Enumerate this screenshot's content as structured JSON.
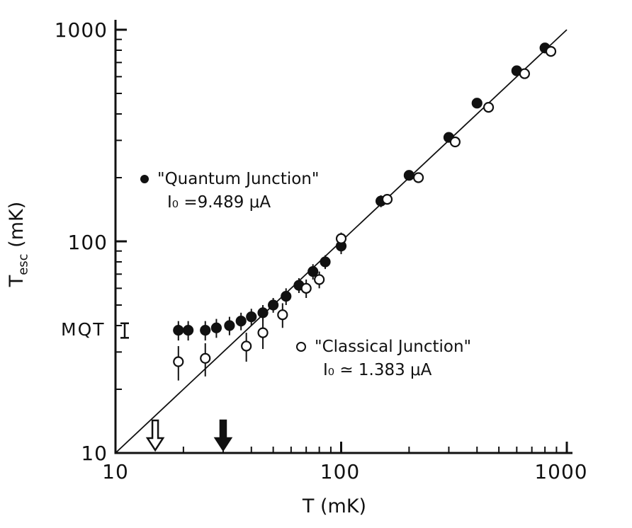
{
  "chart_data": {
    "type": "scatter",
    "title": "",
    "xlabel": "T (mK)",
    "ylabel": "T_esc (mK)",
    "ylabel_parts": {
      "base": "T",
      "sub": "esc",
      "unit": " (mK)"
    },
    "xscale": "log",
    "yscale": "log",
    "xlim": [
      10,
      1000
    ],
    "ylim": [
      10,
      1000
    ],
    "x_ticks": [
      "10",
      "100",
      "1000"
    ],
    "y_ticks": [
      "1000",
      "100",
      "10"
    ],
    "grid": false,
    "reference_line": {
      "from": [
        10,
        10
      ],
      "to": [
        1000,
        1000
      ],
      "meaning": "T_esc = T"
    },
    "series": [
      {
        "name": "Quantum Junction",
        "marker": "filled",
        "legend_line1": "\"Quantum Junction\"",
        "legend_line2": "I₀ =9.489 μA",
        "points": [
          {
            "t": 19,
            "tesc": 38,
            "err": 4
          },
          {
            "t": 21,
            "tesc": 38,
            "err": 4
          },
          {
            "t": 25,
            "tesc": 38,
            "err": 4
          },
          {
            "t": 28,
            "tesc": 39,
            "err": 4
          },
          {
            "t": 32,
            "tesc": 40,
            "err": 4
          },
          {
            "t": 36,
            "tesc": 42,
            "err": 4
          },
          {
            "t": 40,
            "tesc": 44,
            "err": 4
          },
          {
            "t": 45,
            "tesc": 46,
            "err": 4
          },
          {
            "t": 50,
            "tesc": 50,
            "err": 4
          },
          {
            "t": 57,
            "tesc": 55,
            "err": 5
          },
          {
            "t": 65,
            "tesc": 62,
            "err": 5
          },
          {
            "t": 75,
            "tesc": 72,
            "err": 6
          },
          {
            "t": 85,
            "tesc": 80,
            "err": 6
          },
          {
            "t": 100,
            "tesc": 95,
            "err": 8
          },
          {
            "t": 150,
            "tesc": 155,
            "err": 10
          },
          {
            "t": 200,
            "tesc": 205,
            "err": 10
          },
          {
            "t": 300,
            "tesc": 310,
            "err": 12
          },
          {
            "t": 400,
            "tesc": 450,
            "err": 15
          },
          {
            "t": 600,
            "tesc": 640,
            "err": 18
          },
          {
            "t": 800,
            "tesc": 820,
            "err": 20
          }
        ]
      },
      {
        "name": "Classical Junction",
        "marker": "open",
        "legend_line1": "\"Classical Junction\"",
        "legend_line2": "I₀ ≃ 1.383 μA",
        "points": [
          {
            "t": 19,
            "tesc": 27,
            "err": 5
          },
          {
            "t": 25,
            "tesc": 28,
            "err": 5
          },
          {
            "t": 38,
            "tesc": 32,
            "err": 5
          },
          {
            "t": 45,
            "tesc": 37,
            "err": 6
          },
          {
            "t": 55,
            "tesc": 45,
            "err": 6
          },
          {
            "t": 70,
            "tesc": 60,
            "err": 6
          },
          {
            "t": 80,
            "tesc": 66,
            "err": 6
          },
          {
            "t": 100,
            "tesc": 103,
            "err": 7
          },
          {
            "t": 160,
            "tesc": 158,
            "err": 8
          },
          {
            "t": 220,
            "tesc": 200,
            "err": 10
          },
          {
            "t": 320,
            "tesc": 295,
            "err": 12
          },
          {
            "t": 450,
            "tesc": 430,
            "err": 14
          },
          {
            "t": 650,
            "tesc": 620,
            "err": 16
          },
          {
            "t": 850,
            "tesc": 790,
            "err": 18
          }
        ]
      }
    ],
    "annotations": {
      "mqt_label": "MQT",
      "mqt_value": 38,
      "mqt_err": 3,
      "open_arrow_t": 15,
      "filled_arrow_t": 30
    },
    "ink_color": "#111111",
    "background_color": "#ffffff"
  }
}
